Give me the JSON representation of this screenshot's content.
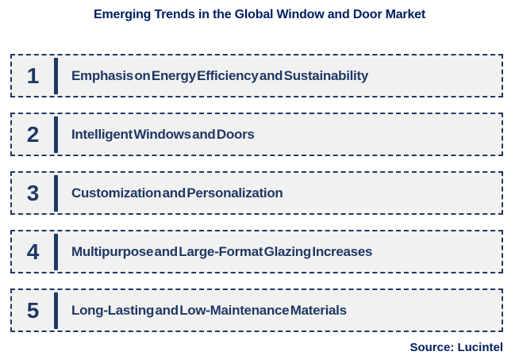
{
  "title": "Emerging Trends in the Global Window and Door Market",
  "items": [
    {
      "number": "1",
      "label": "Emphasis on Energy Efficiency and Sustainability"
    },
    {
      "number": "2",
      "label": "Intelligent Windows and Doors"
    },
    {
      "number": "3",
      "label": "Customization and Personalization"
    },
    {
      "number": "4",
      "label": "Multipurpose and Large-Format Glazing Increases"
    },
    {
      "number": "5",
      "label": "Long-Lasting and Low-Maintenance Materials"
    }
  ],
  "source": "Source: Lucintel",
  "colors": {
    "navy_text": "#1F3864",
    "title_blue": "#002060",
    "box_background": "#F1F1F1",
    "box_border": "#1F3864",
    "page_background": "#FFFFFF"
  }
}
